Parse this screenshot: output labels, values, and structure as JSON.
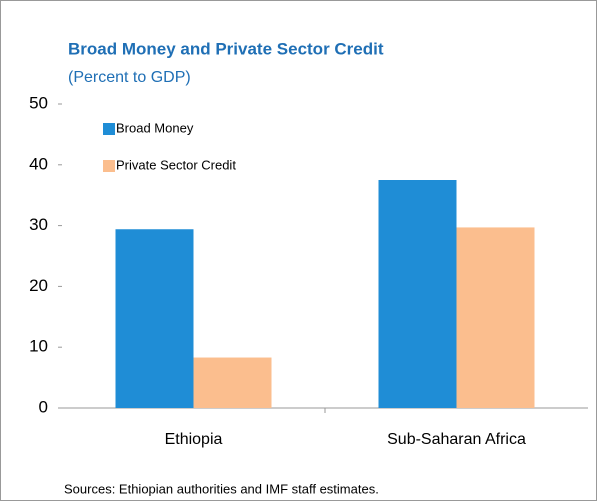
{
  "chart_data": {
    "type": "bar",
    "title": "Broad Money and Private Sector Credit",
    "subtitle": "(Percent to GDP)",
    "categories": [
      "Ethiopia",
      "Sub-Saharan Africa"
    ],
    "series": [
      {
        "name": "Broad Money",
        "color": "#1f8dd6",
        "values": [
          29.4,
          37.5
        ]
      },
      {
        "name": "Private Sector Credit",
        "color": "#fbbe8e",
        "values": [
          8.3,
          29.7
        ]
      }
    ],
    "ylim": [
      0,
      50
    ],
    "yticks": [
      0,
      10,
      20,
      30,
      40,
      50
    ],
    "legend": "upper left",
    "source": "Sources: Ethiopian authorities and IMF staff estimates."
  }
}
